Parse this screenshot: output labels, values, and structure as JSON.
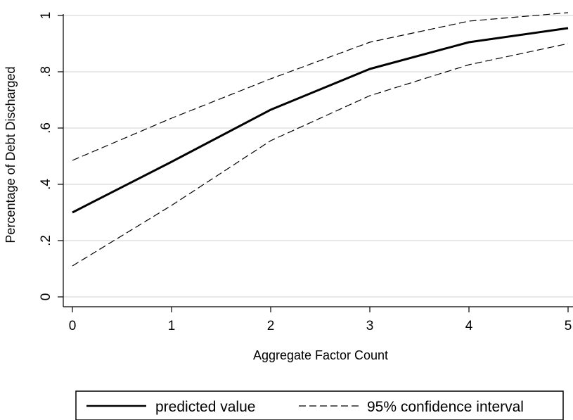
{
  "chart_data": {
    "type": "line",
    "title": "",
    "xlabel": "Aggregate Factor Count",
    "ylabel": "Percentage of Debt Discharged",
    "x": [
      0,
      1,
      2,
      3,
      4,
      5
    ],
    "xlim": [
      0,
      5
    ],
    "ylim": [
      0,
      1
    ],
    "x_ticks": [
      0,
      1,
      2,
      3,
      4,
      5
    ],
    "x_tick_labels": [
      "0",
      "1",
      "2",
      "3",
      "4",
      "5"
    ],
    "y_ticks": [
      0,
      0.2,
      0.4,
      0.6,
      0.8,
      1
    ],
    "y_tick_labels": [
      "0",
      ".2",
      ".4",
      ".6",
      ".8",
      "1"
    ],
    "grid": true,
    "legend_position": "bottom",
    "series": [
      {
        "name": "predicted value",
        "style": "solid",
        "values": [
          0.3,
          0.48,
          0.665,
          0.81,
          0.905,
          0.955
        ]
      },
      {
        "name": "95% confidence interval",
        "style": "dashed",
        "values": [
          0.485,
          0.635,
          0.775,
          0.905,
          0.98,
          1.01
        ]
      },
      {
        "name": "",
        "style": "dashed",
        "values": [
          0.11,
          0.325,
          0.555,
          0.715,
          0.825,
          0.9
        ]
      }
    ],
    "colors": {
      "line": "#000000",
      "grid": "#d9d9d9",
      "background": "#ffffff"
    }
  }
}
